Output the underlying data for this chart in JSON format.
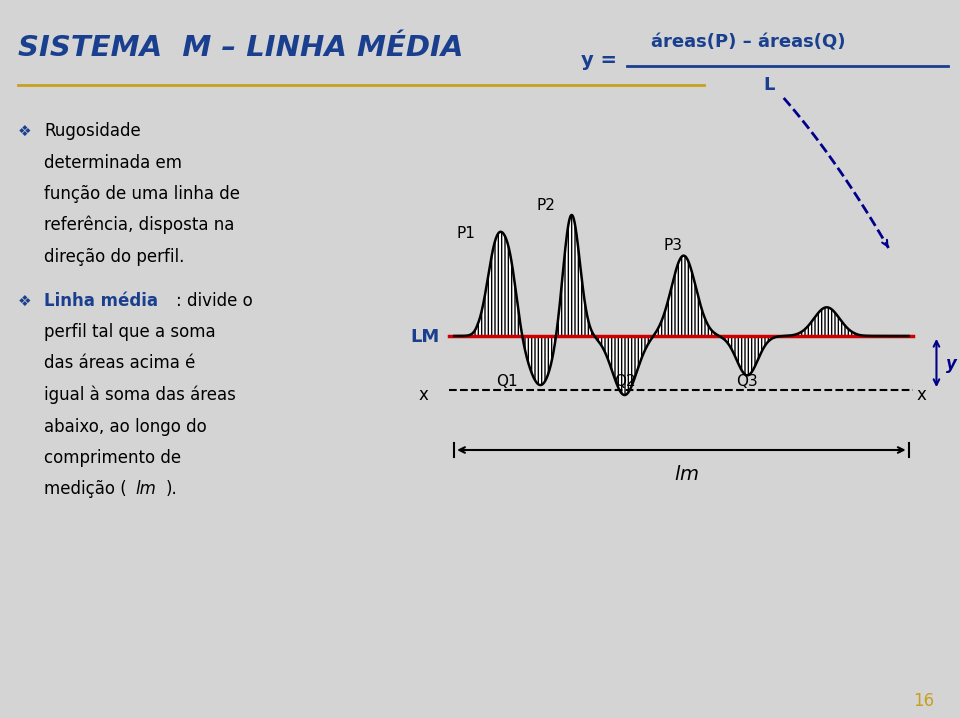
{
  "bg_color": "#d4d4d4",
  "title": "SISTEMA  M – LINHA MÉDIA",
  "title_color": "#1a3f8f",
  "title_underline_color": "#c8a020",
  "formula_y": "y =",
  "formula_num": "áreas(P) – áreas(Q)",
  "formula_den": "L",
  "formula_color": "#1a3f8f",
  "lm_label": "LM",
  "lm_color": "#cc0000",
  "bullet_color": "#1a3f8f",
  "text_lines": [
    "Rugosidade",
    "determinada em",
    "função de uma linha de",
    "referência, disposta na",
    "direção do perfil."
  ],
  "bold_text": "Linha média",
  "bold_color": "#1a3f8f",
  "page_num": "16",
  "page_color": "#c8a020",
  "profile_color": "#000000",
  "hatch_color": "#000000",
  "dashed_line_color": "#00008b",
  "arrow_color": "#00008b"
}
